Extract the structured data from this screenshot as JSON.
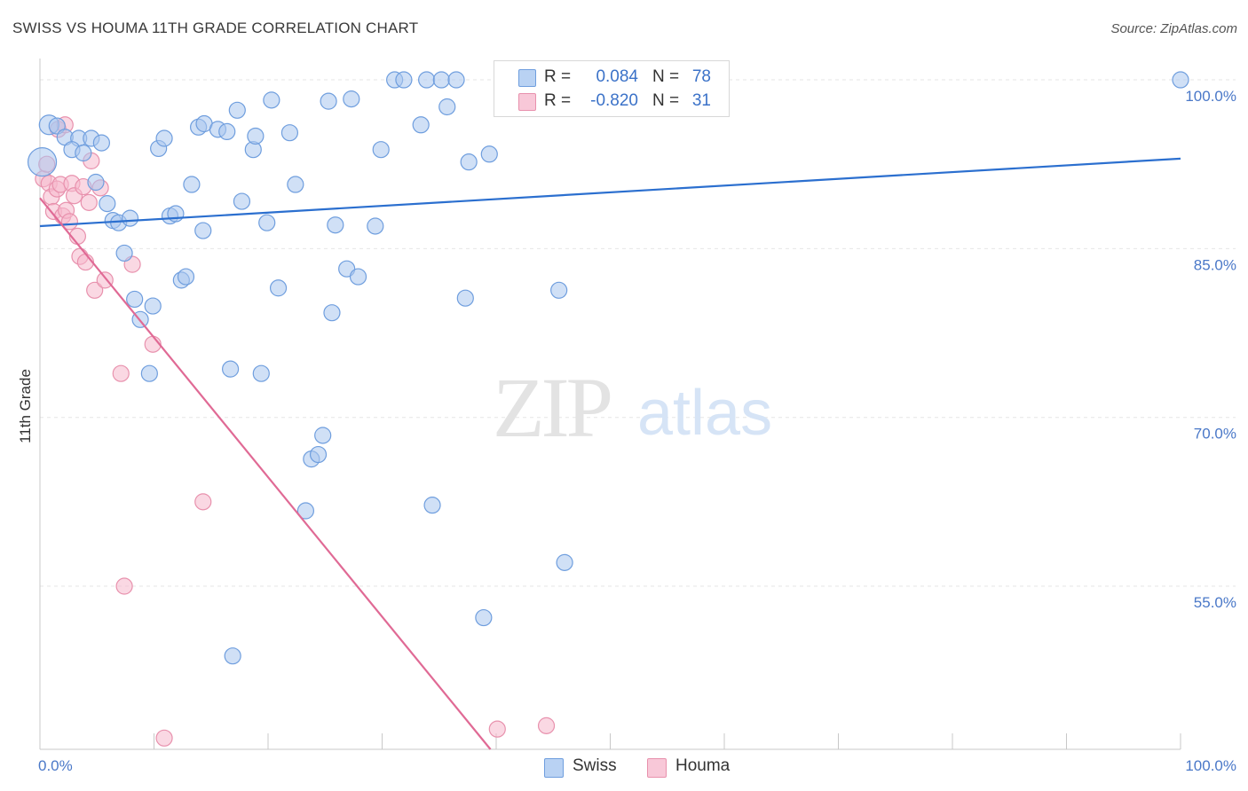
{
  "title": "SWISS VS HOUMA 11TH GRADE CORRELATION CHART",
  "source": "Source: ZipAtlas.com",
  "colors": {
    "swiss_fill": "#a9c6ef",
    "swiss_stroke": "#6f9ede",
    "swiss_line": "#2b6fcf",
    "houma_fill": "#f5b8cc",
    "houma_stroke": "#e891ad",
    "houma_line": "#e06a95",
    "grid": "#e6e6e6",
    "tick_text": "#4a78c8"
  },
  "legend": {
    "rows": [
      {
        "r_label": "R =",
        "r_value": "0.084",
        "n_label": "N =",
        "n_value": "78"
      },
      {
        "r_label": "R =",
        "r_value": "-0.820",
        "n_label": "N =",
        "n_value": "31"
      }
    ]
  },
  "bottom_legend": {
    "swiss": "Swiss",
    "houma": "Houma"
  },
  "watermark": {
    "zip": "ZIP",
    "atlas": "atlas"
  },
  "chart_data": {
    "type": "scatter",
    "title": "SWISS VS HOUMA 11TH GRADE CORRELATION CHART",
    "xlabel": "",
    "ylabel": "11th Grade",
    "xlim": [
      0,
      100
    ],
    "ylim": [
      40.5,
      101.5
    ],
    "x_tick_labels": [
      "0.0%",
      "100.0%"
    ],
    "y_ticks": [
      55,
      70,
      85,
      100
    ],
    "y_tick_labels": [
      "55.0%",
      "70.0%",
      "85.0%",
      "100.0%"
    ],
    "grid": true,
    "legend_position": "top-center",
    "series": [
      {
        "name": "Swiss",
        "trend": {
          "x": [
            0,
            100
          ],
          "y": [
            87.0,
            93.0
          ]
        },
        "points": [
          [
            0.2,
            92.7
          ],
          [
            0.8,
            96.0
          ],
          [
            1.5,
            95.9
          ],
          [
            2.2,
            94.9
          ],
          [
            3.4,
            94.8
          ],
          [
            4.5,
            94.8
          ],
          [
            5.4,
            94.4
          ],
          [
            2.8,
            93.8
          ],
          [
            3.8,
            93.5
          ],
          [
            4.9,
            90.9
          ],
          [
            5.9,
            89.0
          ],
          [
            6.4,
            87.5
          ],
          [
            6.9,
            87.3
          ],
          [
            7.9,
            87.7
          ],
          [
            7.4,
            84.6
          ],
          [
            8.3,
            80.5
          ],
          [
            8.8,
            78.7
          ],
          [
            9.9,
            79.9
          ],
          [
            9.6,
            73.9
          ],
          [
            10.4,
            93.9
          ],
          [
            10.9,
            94.8
          ],
          [
            11.4,
            87.9
          ],
          [
            11.9,
            88.1
          ],
          [
            12.4,
            82.2
          ],
          [
            12.8,
            82.5
          ],
          [
            13.3,
            90.7
          ],
          [
            14.3,
            86.6
          ],
          [
            13.9,
            95.8
          ],
          [
            14.4,
            96.1
          ],
          [
            15.6,
            95.6
          ],
          [
            16.4,
            95.4
          ],
          [
            17.3,
            97.3
          ],
          [
            16.7,
            74.3
          ],
          [
            17.7,
            89.2
          ],
          [
            16.9,
            48.8
          ],
          [
            18.7,
            93.8
          ],
          [
            18.9,
            95.0
          ],
          [
            19.4,
            73.9
          ],
          [
            19.9,
            87.3
          ],
          [
            20.3,
            98.2
          ],
          [
            20.9,
            81.5
          ],
          [
            21.9,
            95.3
          ],
          [
            22.4,
            90.7
          ],
          [
            23.3,
            61.7
          ],
          [
            23.8,
            66.3
          ],
          [
            24.4,
            66.7
          ],
          [
            24.8,
            68.4
          ],
          [
            25.3,
            98.1
          ],
          [
            25.6,
            79.3
          ],
          [
            25.9,
            87.1
          ],
          [
            26.9,
            83.2
          ],
          [
            27.3,
            98.3
          ],
          [
            27.9,
            82.5
          ],
          [
            29.4,
            87.0
          ],
          [
            29.9,
            93.8
          ],
          [
            31.1,
            100.0
          ],
          [
            31.9,
            100.0
          ],
          [
            33.4,
            96.0
          ],
          [
            33.9,
            100.0
          ],
          [
            34.4,
            62.2
          ],
          [
            35.2,
            100.0
          ],
          [
            35.7,
            97.6
          ],
          [
            36.5,
            100.0
          ],
          [
            37.3,
            80.6
          ],
          [
            37.6,
            92.7
          ],
          [
            38.9,
            52.2
          ],
          [
            39.4,
            93.4
          ],
          [
            41.3,
            100.0
          ],
          [
            41.9,
            100.0
          ],
          [
            42.4,
            100.0
          ],
          [
            46.3,
            100.0
          ],
          [
            47.3,
            100.0
          ],
          [
            47.4,
            100.0
          ],
          [
            48.9,
            100.0
          ],
          [
            49.6,
            100.0
          ],
          [
            45.5,
            81.3
          ],
          [
            46.0,
            57.1
          ],
          [
            100.0,
            100.0
          ]
        ]
      },
      {
        "name": "Houma",
        "trend": {
          "x": [
            0,
            39.5
          ],
          "y": [
            89.5,
            40.5
          ]
        },
        "points": [
          [
            0.3,
            91.2
          ],
          [
            0.8,
            90.8
          ],
          [
            1.0,
            89.6
          ],
          [
            1.2,
            88.3
          ],
          [
            1.5,
            90.3
          ],
          [
            1.6,
            95.6
          ],
          [
            1.8,
            90.7
          ],
          [
            2.0,
            87.9
          ],
          [
            2.3,
            88.4
          ],
          [
            2.6,
            87.4
          ],
          [
            2.8,
            90.8
          ],
          [
            3.0,
            89.7
          ],
          [
            3.3,
            86.1
          ],
          [
            3.5,
            84.3
          ],
          [
            3.8,
            90.5
          ],
          [
            4.0,
            83.8
          ],
          [
            4.3,
            89.1
          ],
          [
            4.5,
            92.8
          ],
          [
            4.8,
            81.3
          ],
          [
            5.3,
            90.4
          ],
          [
            5.7,
            82.2
          ],
          [
            7.1,
            73.9
          ],
          [
            7.4,
            55.0
          ],
          [
            8.1,
            83.6
          ],
          [
            9.9,
            76.5
          ],
          [
            10.9,
            41.5
          ],
          [
            14.3,
            62.5
          ],
          [
            40.1,
            42.3
          ],
          [
            44.4,
            42.6
          ],
          [
            0.6,
            92.5
          ],
          [
            2.2,
            96.0
          ]
        ]
      }
    ]
  }
}
